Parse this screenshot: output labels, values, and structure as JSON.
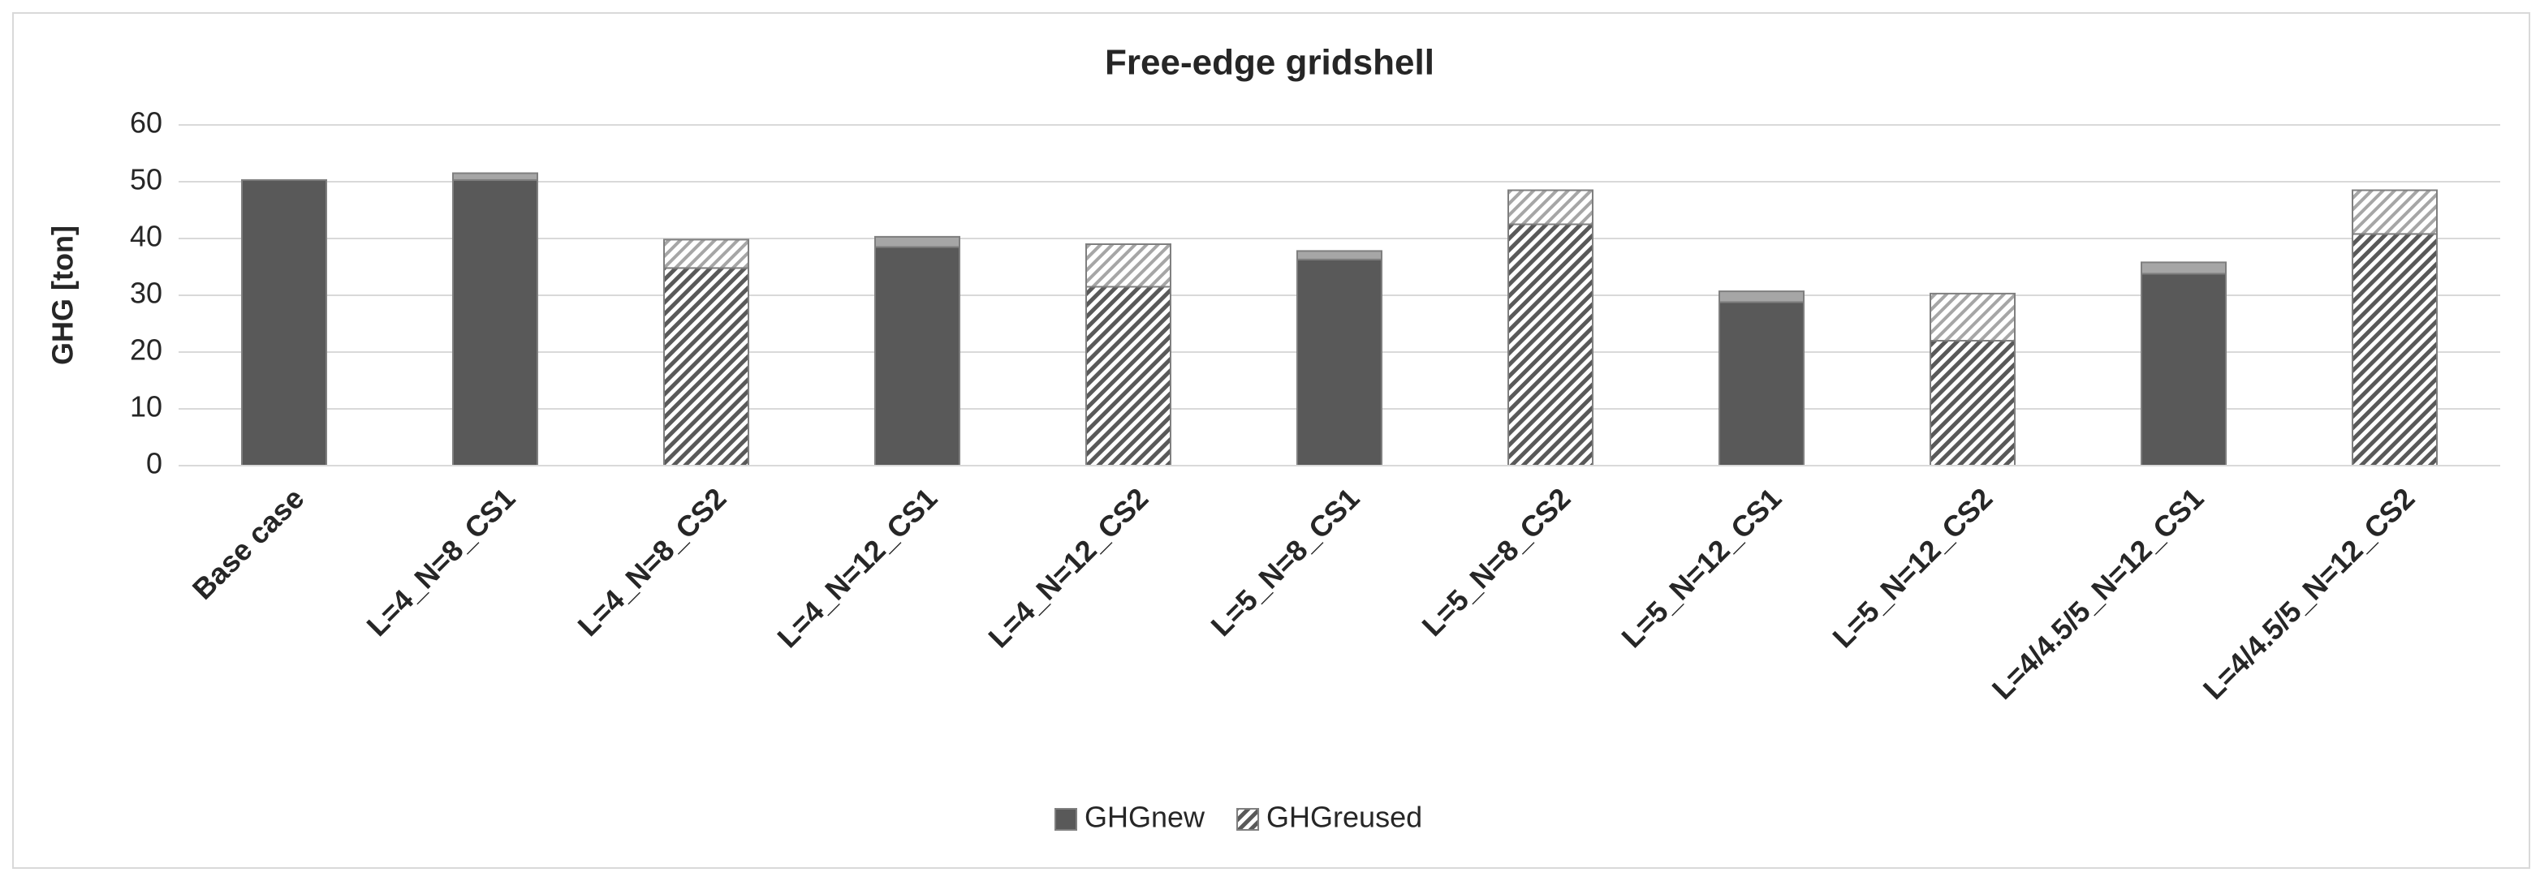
{
  "chart_data": {
    "type": "bar",
    "stacked": true,
    "title": "Free-edge gridshell",
    "y_label": "GHG [ton]",
    "categories": [
      "Base case",
      "L=4_N=8_CS1",
      "L=4_N=8_CS2",
      "L=4_N=12_CS1",
      "L=4_N=12_CS2",
      "L=5_N=8_CS1",
      "L=5_N=8_CS2",
      "L=5_N=12_CS1",
      "L=5_N=12_CS2",
      "L=4/4.5/5_N=12_CS1",
      "L=4/4.5/5_N=12_CS2"
    ],
    "series": [
      {
        "name": "GHGnew",
        "color": "#595959",
        "values": [
          50.3,
          50.3,
          null,
          38.5,
          null,
          36.3,
          null,
          28.8,
          null,
          33.8,
          null
        ]
      },
      {
        "name": "GHGreused",
        "color": "#595959",
        "pattern": "hatch",
        "values": [
          null,
          null,
          34.8,
          null,
          31.5,
          null,
          42.5,
          null,
          22,
          null,
          40.8
        ]
      },
      {
        "color": "#a6a6a6",
        "values": [
          null,
          1.2,
          5,
          1.8,
          7.5,
          1.5,
          6,
          1.9,
          8.3,
          2,
          7.7
        ]
      }
    ],
    "ylim": [
      0,
      60
    ],
    "yticks": [
      0,
      10,
      20,
      30,
      40,
      50,
      60
    ],
    "grid": true,
    "legend": "bottom"
  }
}
